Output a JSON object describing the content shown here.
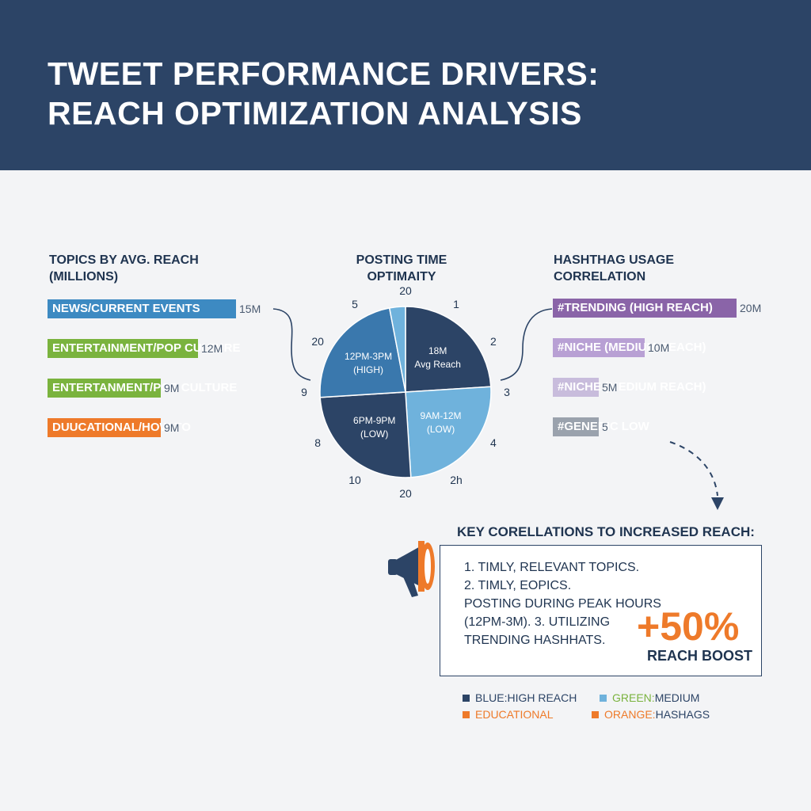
{
  "header": {
    "title_line1": "TWEET PERFORMANCE DRIVERS:",
    "title_line2": "REACH OPTIMIZATION ANALYSIS"
  },
  "colors": {
    "header_bg": "#2c4466",
    "blue": "#3d8ac2",
    "green": "#7ab33e",
    "orange": "#ee7a2a",
    "purple_dark": "#8a64a8",
    "purple_light": "#b8a0d4",
    "purple_pale": "#c8bcdc",
    "gray": "#9aa2ad",
    "navy": "#2c4466",
    "light_blue": "#6fb2dc",
    "mid_blue": "#3a78ad"
  },
  "chart_data": [
    {
      "type": "bar",
      "title_line1": "TOPICS BY AVG. REACH",
      "title_line2": "(MILLIONS)",
      "categories": [
        "NEWS/CURRENT EVENTS",
        "ENTERTAINMENT/POP CULTURE",
        "ENTERTANMENT/POP CULTURE",
        "DUUCATIONAL/HOW-TO"
      ],
      "values": [
        15,
        12,
        9,
        9
      ],
      "value_labels": [
        "15M",
        "12M",
        "9M",
        "9M"
      ],
      "bar_colors": [
        "#3d8ac2",
        "#7ab33e",
        "#7ab33e",
        "#ee7a2a"
      ],
      "xlim": [
        0,
        15
      ]
    },
    {
      "type": "pie",
      "title_line1": "POSTING TIME",
      "title_line2": "OPTIMAITY",
      "slices": [
        {
          "line1": "18M",
          "line2": "Avg Reach",
          "value": 24,
          "color": "#2c4466"
        },
        {
          "line1": "9AM-12M",
          "line2": "(LOW)",
          "value": 25,
          "color": "#6fb2dc"
        },
        {
          "line1": "6PM-9PM",
          "line2": "(LOW)",
          "value": 25,
          "color": "#2c4466"
        },
        {
          "line1": "12PM-3PM",
          "line2": "(HIGH)",
          "value": 23,
          "color": "#3a78ad"
        },
        {
          "line1": "",
          "line2": "",
          "value": 3,
          "color": "#6fb2dc"
        }
      ],
      "clock_labels": [
        "20",
        "1",
        "2",
        "3",
        "4",
        "2h",
        "20",
        "10",
        "8",
        "9",
        "20",
        "5"
      ]
    },
    {
      "type": "bar",
      "title_line1": "HASHTHAG USAGE",
      "title_line2": "CORRELATION",
      "categories": [
        "#TRENDING (HIGH REACH)",
        "#NICHE (MEDIUM REACH)",
        "#NICHE (MEDIUM REACH)",
        "#GENERIC LOW"
      ],
      "values": [
        20,
        10,
        5,
        5
      ],
      "value_labels": [
        "20M",
        "10M",
        "5M",
        "5"
      ],
      "bar_colors": [
        "#8a64a8",
        "#b8a0d4",
        "#c8bcdc",
        "#9aa2ad"
      ],
      "xlim": [
        0,
        20
      ]
    }
  ],
  "key_card": {
    "title": "KEY CORELLATIONS TO INCREASED REACH:",
    "lines": [
      "1. TIMLY, RELEVANT TOPICS.",
      "2. TIMLY, EOPICS.",
      "POSTING DURING PEAK HOURS",
      "(12PM-3M). 3. UTILIZING",
      "TRENDING HASHHATS."
    ],
    "boost_value": "+50%",
    "boost_label": "REACH BOOST"
  },
  "legend": [
    {
      "prefix": "BLUE:",
      "text": " HIGH REACH",
      "square": "#2c4466",
      "prefix_color": "#2c4466"
    },
    {
      "prefix": "GREEN:",
      "text": " MEDIUM",
      "square": "#6fb2dc",
      "prefix_color": "#7ab33e"
    },
    {
      "prefix": "EDUCATIONAL",
      "text": "",
      "square": "#ee7a2a",
      "prefix_color": "#ee7a2a"
    },
    {
      "prefix": "ORANGE:",
      "text": " HASHAGS",
      "square": "#ee7a2a",
      "prefix_color": "#ee7a2a"
    }
  ]
}
